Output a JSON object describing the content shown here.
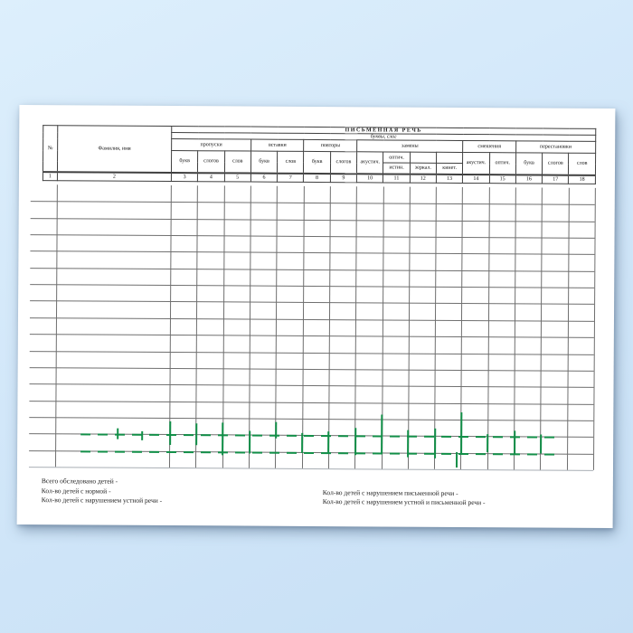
{
  "colors": {
    "watermark_green": "#128f48",
    "table_line": "#3f3f3f",
    "body_line": "#6f6f6f",
    "bg_top": "#ddeffc",
    "bg_bottom": "#c7dff5"
  },
  "header": {
    "no": "№",
    "name": "Фамилия, имя",
    "title": "ПИСЬМЕННАЯ РЕЧЬ",
    "subtitle": "буквы, слог",
    "groups": {
      "propuski": "пропуски",
      "vstavki": "вставки",
      "povtory": "повторы",
      "zameny": "замены",
      "smesheniya": "смешения",
      "perestanovki": "перестановки"
    },
    "sub": {
      "bukv": "букв",
      "slogov": "слогов",
      "slov": "слов",
      "akustich": "акустич.",
      "optich": "оптич.",
      "istin": "истин.",
      "zerkal": "зеркал.",
      "kinet": "кинет."
    },
    "nums": [
      "1",
      "2",
      "3",
      "4",
      "5",
      "6",
      "7",
      "8",
      "9",
      "10",
      "11",
      "12",
      "13",
      "14",
      "15",
      "16",
      "17",
      "18"
    ]
  },
  "table": {
    "body_rows": 17
  },
  "notes": {
    "total": "Всего обследовано детей -",
    "norm": "Кол-во детей с нормой -",
    "oral": "Кол-во детей с нарушением устной речи -",
    "written": "Кол-во детей с нарушением письменной речи -",
    "oral_written": "Кол-во детей с нарушением устной и письменной речи -"
  }
}
